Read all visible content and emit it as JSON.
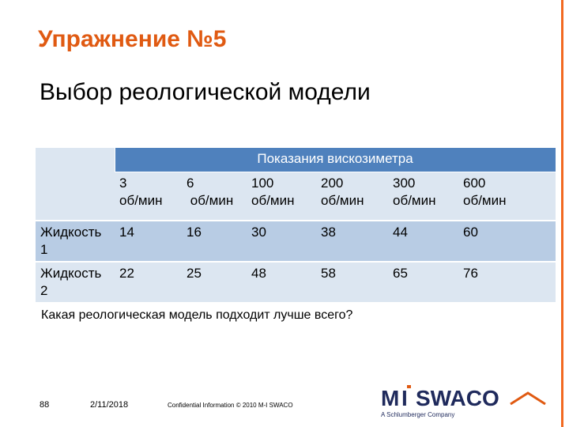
{
  "slide": {
    "title": "Упражнение №5",
    "subtitle": "Выбор реологической модели",
    "question": "Какая реологическая модель  подходит лучше всего?"
  },
  "table": {
    "group_header": "Показания вискозиметра",
    "columns": [
      {
        "line1": "3",
        "line2": "об/мин"
      },
      {
        "line1": "6",
        "line2": "об/мин"
      },
      {
        "line1": "100",
        "line2": "об/мин"
      },
      {
        "line1": "200",
        "line2": "об/мин"
      },
      {
        "line1": "300",
        "line2": "об/мин"
      },
      {
        "line1": "600",
        "line2": "об/мин"
      }
    ],
    "rows": [
      {
        "label_line1": "Жидкость",
        "label_line2": "1",
        "values": [
          "14",
          "16",
          "30",
          "38",
          "44",
          "60"
        ]
      },
      {
        "label_line1": "Жидкость",
        "label_line2": "2",
        "values": [
          "22",
          "25",
          "48",
          "58",
          "65",
          "76"
        ]
      }
    ]
  },
  "footer": {
    "page_number": "88",
    "date": "2/11/2018",
    "confidential": "Confidential Information  © 2010 M-I SWACO",
    "logo_text": "M-I SWACO",
    "logo_tagline": "A Schlumberger Company"
  },
  "colors": {
    "title": "#e05a12",
    "accent_rule": "#f26a21",
    "table_band": "#4f81bd",
    "table_light": "#dce6f1",
    "table_mid": "#b8cce4",
    "logo_navy": "#1f2a5c"
  }
}
